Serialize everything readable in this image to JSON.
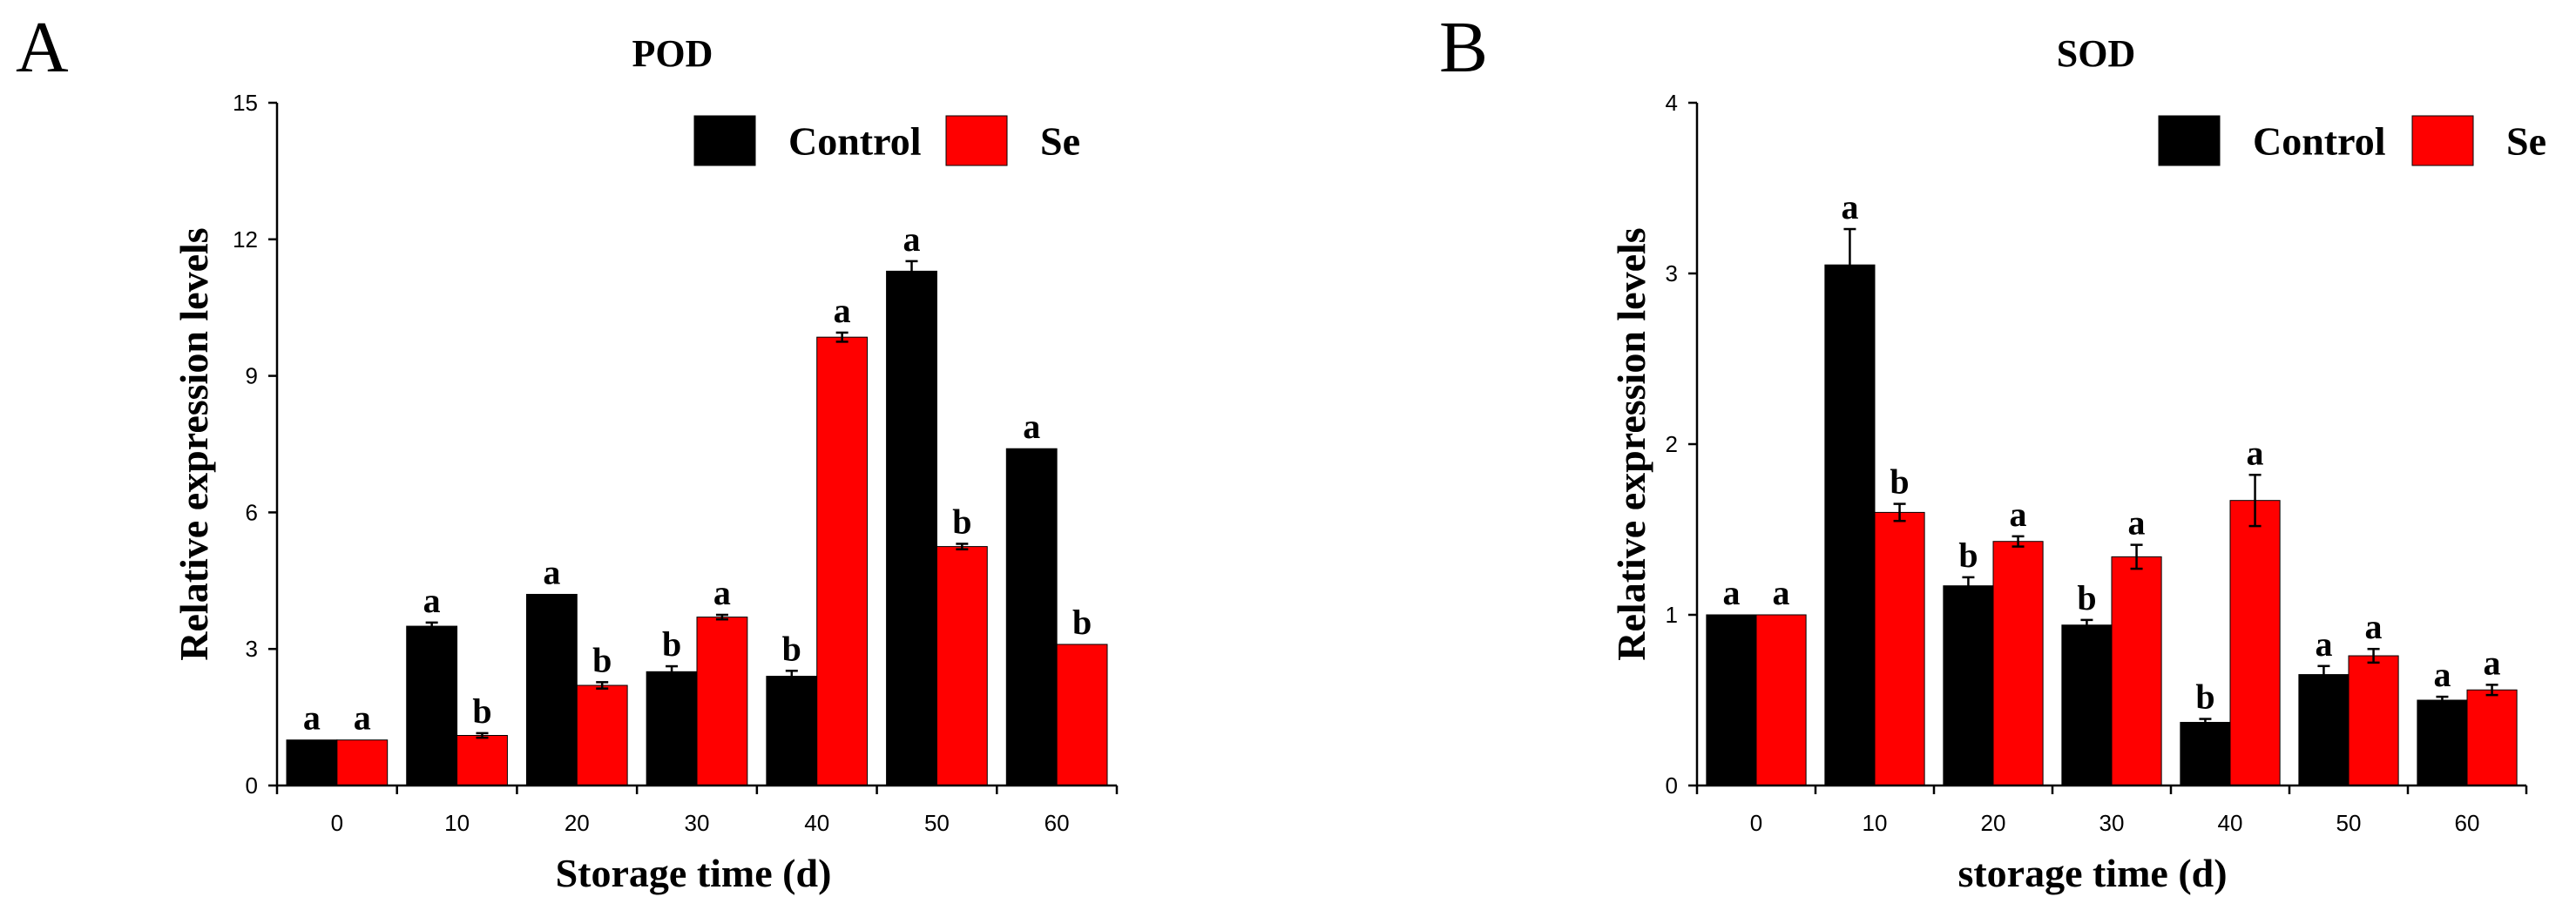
{
  "colors": {
    "control": "#000000",
    "se": "#ff0000",
    "axis": "#000000"
  },
  "chart_data": [
    {
      "panel": "A",
      "type": "bar",
      "title": "POD",
      "xlabel": "Storage time (d)",
      "ylabel": "Relative expression levels",
      "ylim": [
        0,
        15
      ],
      "yticks": [
        "0",
        "3",
        "6",
        "9",
        "12",
        "15"
      ],
      "categories": [
        "0",
        "10",
        "20",
        "30",
        "40",
        "50",
        "60"
      ],
      "legend_position": "top-right",
      "series": [
        {
          "name": "Control",
          "color_key": "control",
          "values": [
            1.0,
            3.5,
            4.2,
            2.5,
            2.4,
            11.3,
            7.4
          ],
          "errors": [
            0.0,
            0.08,
            0.0,
            0.12,
            0.12,
            0.22,
            0.0
          ],
          "letters": [
            "a",
            "a",
            "a",
            "b",
            "b",
            "a",
            "a"
          ]
        },
        {
          "name": "Se",
          "color_key": "se",
          "values": [
            1.0,
            1.1,
            2.2,
            3.7,
            9.85,
            5.25,
            3.1
          ],
          "errors": [
            0.0,
            0.05,
            0.07,
            0.05,
            0.1,
            0.06,
            0.0
          ],
          "letters": [
            "a",
            "b",
            "b",
            "a",
            "a",
            "b",
            "b"
          ]
        }
      ]
    },
    {
      "panel": "B",
      "type": "bar",
      "title": "SOD",
      "xlabel": "storage time (d)",
      "ylabel": "Relative expression levels",
      "ylim": [
        0,
        4
      ],
      "yticks": [
        "0",
        "1",
        "2",
        "3",
        "4"
      ],
      "categories": [
        "0",
        "10",
        "20",
        "30",
        "40",
        "50",
        "60"
      ],
      "legend_position": "top-right",
      "series": [
        {
          "name": "Control",
          "color_key": "control",
          "values": [
            1.0,
            3.05,
            1.17,
            0.94,
            0.37,
            0.65,
            0.5
          ],
          "errors": [
            0.0,
            0.21,
            0.05,
            0.03,
            0.02,
            0.05,
            0.02
          ],
          "letters": [
            "a",
            "a",
            "b",
            "b",
            "b",
            "a",
            "a"
          ]
        },
        {
          "name": "Se",
          "color_key": "se",
          "values": [
            1.0,
            1.6,
            1.43,
            1.34,
            1.67,
            0.76,
            0.56
          ],
          "errors": [
            0.0,
            0.05,
            0.03,
            0.07,
            0.15,
            0.04,
            0.03
          ],
          "letters": [
            "a",
            "b",
            "a",
            "a",
            "a",
            "a",
            "a"
          ]
        }
      ]
    }
  ]
}
